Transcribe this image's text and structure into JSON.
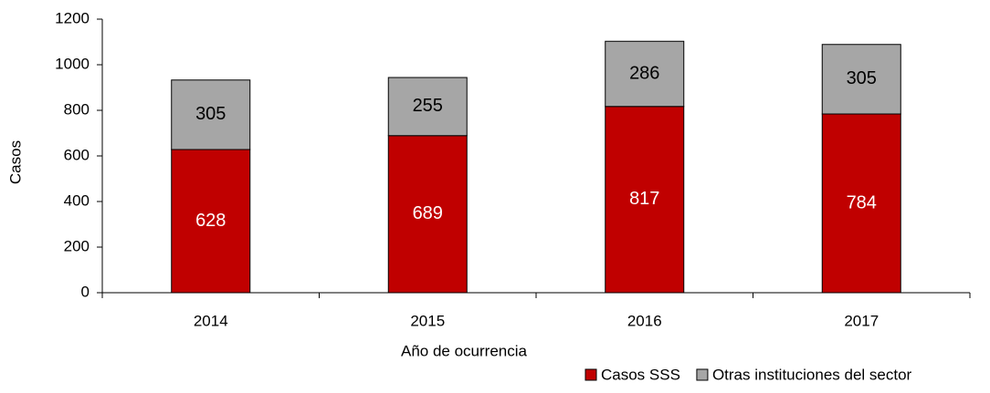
{
  "chart_data": {
    "type": "stacked_bar",
    "x_label": "Año de ocurrencia",
    "y_label": "Casos",
    "categories": [
      "2014",
      "2015",
      "2016",
      "2017"
    ],
    "series": [
      {
        "name": "Casos SSS",
        "color": "#c00000",
        "values": [
          628,
          689,
          817,
          784
        ]
      },
      {
        "name": "Otras instituciones del sector",
        "color": "#a6a6a6",
        "values": [
          305,
          255,
          286,
          305
        ]
      }
    ],
    "ylim": [
      0,
      1200
    ],
    "yticks": [
      0,
      200,
      400,
      600,
      800,
      1000,
      1200
    ],
    "legend": "bottom-right"
  }
}
